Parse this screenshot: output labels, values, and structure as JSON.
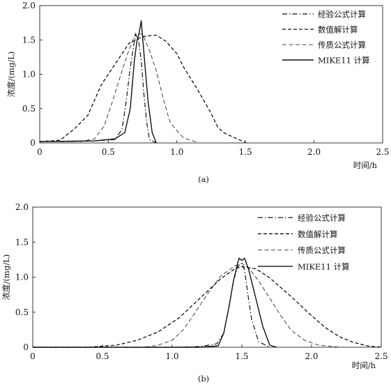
{
  "chart_data": [
    {
      "type": "line",
      "panel": "(a)",
      "caption": "(a)",
      "xlabel": "时间/h",
      "ylabel": "浓度/(mg/L)",
      "xlim": [
        0,
        2.5
      ],
      "ylim": [
        0,
        2.0
      ],
      "xticks": [
        "0",
        "0.5",
        "1.0",
        "1.5",
        "2.0",
        "2.5"
      ],
      "yticks": [
        "0",
        "0.5",
        "1.0",
        "1.5",
        "2.0"
      ],
      "grid": false,
      "legend_position": "top-right",
      "series": [
        {
          "name": "经验公式计算",
          "style": "dashdot",
          "points": [
            [
              0,
              0.02
            ],
            [
              0.2,
              0.02
            ],
            [
              0.4,
              0.03
            ],
            [
              0.55,
              0.05
            ],
            [
              0.6,
              0.2
            ],
            [
              0.63,
              0.6
            ],
            [
              0.66,
              1.1
            ],
            [
              0.69,
              1.48
            ],
            [
              0.7,
              1.58
            ],
            [
              0.72,
              1.5
            ],
            [
              0.74,
              1.2
            ],
            [
              0.76,
              0.7
            ],
            [
              0.78,
              0.3
            ],
            [
              0.8,
              0.05
            ],
            [
              0.85,
              0
            ]
          ]
        },
        {
          "name": "数值解计算",
          "style": "dashed",
          "points": [
            [
              0,
              0.02
            ],
            [
              0.15,
              0.04
            ],
            [
              0.2,
              0.12
            ],
            [
              0.25,
              0.2
            ],
            [
              0.35,
              0.4
            ],
            [
              0.45,
              0.85
            ],
            [
              0.55,
              1.15
            ],
            [
              0.65,
              1.45
            ],
            [
              0.75,
              1.55
            ],
            [
              0.85,
              1.57
            ],
            [
              0.92,
              1.48
            ],
            [
              1.0,
              1.3
            ],
            [
              1.05,
              1.1
            ],
            [
              1.15,
              0.78
            ],
            [
              1.25,
              0.43
            ],
            [
              1.3,
              0.22
            ],
            [
              1.35,
              0.14
            ],
            [
              1.45,
              0.05
            ],
            [
              1.5,
              0.01
            ]
          ]
        },
        {
          "name": "传质公式计算",
          "style": "dashed-thin",
          "points": [
            [
              0,
              0.02
            ],
            [
              0.3,
              0.02
            ],
            [
              0.4,
              0.06
            ],
            [
              0.47,
              0.25
            ],
            [
              0.53,
              0.6
            ],
            [
              0.6,
              1.05
            ],
            [
              0.65,
              1.35
            ],
            [
              0.7,
              1.6
            ],
            [
              0.75,
              1.58
            ],
            [
              0.8,
              1.35
            ],
            [
              0.85,
              1.05
            ],
            [
              0.9,
              0.65
            ],
            [
              0.95,
              0.3
            ],
            [
              1.0,
              0.18
            ],
            [
              1.05,
              0.07
            ],
            [
              1.15,
              0.01
            ]
          ]
        },
        {
          "name": "MIKE11 计算",
          "style": "solid",
          "points": [
            [
              0,
              0.02
            ],
            [
              0.4,
              0.03
            ],
            [
              0.55,
              0.06
            ],
            [
              0.62,
              0.15
            ],
            [
              0.66,
              0.5
            ],
            [
              0.69,
              1.2
            ],
            [
              0.71,
              1.5
            ],
            [
              0.725,
              1.6
            ],
            [
              0.74,
              1.78
            ],
            [
              0.76,
              1.3
            ],
            [
              0.79,
              0.6
            ],
            [
              0.82,
              0.15
            ],
            [
              0.85,
              0
            ]
          ]
        }
      ]
    },
    {
      "type": "line",
      "panel": "(b)",
      "caption": "(b)",
      "xlabel": "时间/h",
      "ylabel": "浓度/(mg/L)",
      "xlim": [
        0,
        2.5
      ],
      "ylim": [
        0,
        2.0
      ],
      "xticks": [
        "0",
        "0.5",
        "1.0",
        "1.5",
        "2.0",
        "2.5"
      ],
      "yticks": [
        "0",
        "0.5",
        "1.0",
        "1.5",
        "2.0"
      ],
      "grid": false,
      "legend_position": "top-right",
      "series": [
        {
          "name": "经验公式计算",
          "style": "dashdot",
          "points": [
            [
              0,
              0
            ],
            [
              1.0,
              0
            ],
            [
              1.2,
              0.01
            ],
            [
              1.32,
              0.05
            ],
            [
              1.37,
              0.2
            ],
            [
              1.41,
              0.6
            ],
            [
              1.44,
              0.95
            ],
            [
              1.47,
              1.15
            ],
            [
              1.5,
              1.2
            ],
            [
              1.52,
              1.1
            ],
            [
              1.54,
              0.8
            ],
            [
              1.57,
              0.4
            ],
            [
              1.62,
              0.08
            ],
            [
              1.7,
              0
            ]
          ]
        },
        {
          "name": "数值解计算",
          "style": "dashed",
          "points": [
            [
              0,
              0
            ],
            [
              0.4,
              0
            ],
            [
              0.6,
              0.03
            ],
            [
              0.75,
              0.1
            ],
            [
              0.9,
              0.22
            ],
            [
              1.05,
              0.42
            ],
            [
              1.2,
              0.7
            ],
            [
              1.35,
              0.98
            ],
            [
              1.45,
              1.12
            ],
            [
              1.5,
              1.15
            ],
            [
              1.6,
              1.12
            ],
            [
              1.7,
              0.99
            ],
            [
              1.85,
              0.73
            ],
            [
              2.0,
              0.45
            ],
            [
              2.1,
              0.28
            ],
            [
              2.2,
              0.15
            ],
            [
              2.3,
              0.07
            ],
            [
              2.4,
              0.02
            ],
            [
              2.5,
              0
            ]
          ]
        },
        {
          "name": "传质公式计算",
          "style": "dashed-thin",
          "points": [
            [
              0,
              0
            ],
            [
              0.8,
              0
            ],
            [
              0.9,
              0.03
            ],
            [
              1.0,
              0.1
            ],
            [
              1.08,
              0.25
            ],
            [
              1.15,
              0.45
            ],
            [
              1.25,
              0.75
            ],
            [
              1.35,
              1.02
            ],
            [
              1.45,
              1.16
            ],
            [
              1.5,
              1.2
            ],
            [
              1.55,
              1.13
            ],
            [
              1.62,
              0.95
            ],
            [
              1.7,
              0.7
            ],
            [
              1.78,
              0.45
            ],
            [
              1.85,
              0.25
            ],
            [
              1.95,
              0.1
            ],
            [
              2.05,
              0.03
            ],
            [
              2.2,
              0
            ]
          ]
        },
        {
          "name": "MIKE11 计算",
          "style": "solid",
          "points": [
            [
              0,
              0
            ],
            [
              1.2,
              0
            ],
            [
              1.33,
              0.02
            ],
            [
              1.37,
              0.2
            ],
            [
              1.41,
              0.6
            ],
            [
              1.44,
              0.95
            ],
            [
              1.47,
              1.2
            ],
            [
              1.48,
              1.27
            ],
            [
              1.5,
              1.24
            ],
            [
              1.52,
              1.27
            ],
            [
              1.55,
              1.1
            ],
            [
              1.6,
              0.7
            ],
            [
              1.65,
              0.3
            ],
            [
              1.7,
              0.03
            ],
            [
              1.75,
              0
            ]
          ]
        }
      ]
    }
  ]
}
